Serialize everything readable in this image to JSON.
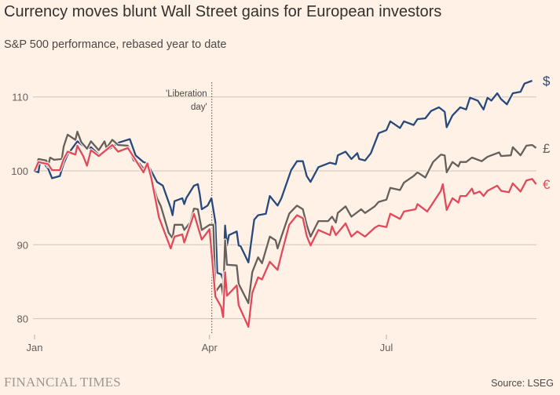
{
  "chart_data": {
    "type": "line",
    "title": "Currency moves blunt Wall Street gains for European investors",
    "subtitle": "S&P 500 performance, rebased year to date",
    "xlabel": "",
    "ylabel": "",
    "x_unit": "day of year 2025 (0 = 1 Jan)",
    "xlim": [
      0,
      258
    ],
    "ylim": [
      78,
      113
    ],
    "yticks": [
      80,
      90,
      100,
      110
    ],
    "xticks": [
      {
        "day": 0,
        "label": "Jan"
      },
      {
        "day": 90,
        "label": "Apr"
      },
      {
        "day": 181,
        "label": "Jul"
      }
    ],
    "grid": true,
    "annotation": {
      "day": 91,
      "lines": [
        "'Liberation",
        "day'"
      ]
    },
    "series": [
      {
        "name": "$",
        "color": "#27497c",
        "points": [
          [
            0,
            100
          ],
          [
            2,
            99.8
          ],
          [
            3,
            101.6
          ],
          [
            7,
            100.3
          ],
          [
            9,
            99.0
          ],
          [
            13,
            99.3
          ],
          [
            15,
            101
          ],
          [
            17,
            102.2
          ],
          [
            22,
            104
          ],
          [
            27,
            103
          ],
          [
            29,
            103.2
          ],
          [
            33,
            102.2
          ],
          [
            40,
            103.2
          ],
          [
            43,
            103.8
          ],
          [
            49,
            104.3
          ],
          [
            52,
            102.1
          ],
          [
            56,
            101.2
          ],
          [
            58,
            101
          ],
          [
            63,
            98.5
          ],
          [
            66,
            98.0
          ],
          [
            70,
            95
          ],
          [
            71,
            94
          ],
          [
            72,
            95.9
          ],
          [
            76,
            96.3
          ],
          [
            77,
            95.5
          ],
          [
            78,
            96.3
          ],
          [
            82,
            98.0
          ],
          [
            84,
            98.2
          ],
          [
            85,
            96.8
          ],
          [
            86,
            94.8
          ],
          [
            89,
            95.3
          ],
          [
            91,
            96.3
          ],
          [
            93,
            93.1
          ],
          [
            94,
            86.2
          ],
          [
            96,
            86
          ],
          [
            97,
            85.2
          ],
          [
            98,
            92.6
          ],
          [
            99,
            89.9
          ],
          [
            100,
            91.3
          ],
          [
            104,
            91.8
          ],
          [
            105,
            89.9
          ],
          [
            106,
            89.8
          ],
          [
            110,
            87.6
          ],
          [
            113,
            93.4
          ],
          [
            115,
            94
          ],
          [
            119,
            94.2
          ],
          [
            121,
            96.6
          ],
          [
            125,
            95.3
          ],
          [
            127,
            96.3
          ],
          [
            132,
            100.1
          ],
          [
            135,
            101.3
          ],
          [
            138,
            101.3
          ],
          [
            140,
            99.3
          ],
          [
            142,
            98.5
          ],
          [
            146,
            100.5
          ],
          [
            152,
            101.1
          ],
          [
            155,
            100.9
          ],
          [
            156,
            102.1
          ],
          [
            160,
            102.6
          ],
          [
            163,
            101.6
          ],
          [
            166,
            102.4
          ],
          [
            167,
            101.6
          ],
          [
            170,
            101.4
          ],
          [
            173,
            102.4
          ],
          [
            177,
            105.1
          ],
          [
            181,
            105.5
          ],
          [
            183,
            106.7
          ],
          [
            188,
            105.8
          ],
          [
            190,
            106.7
          ],
          [
            195,
            106.2
          ],
          [
            197,
            107
          ],
          [
            201,
            107.1
          ],
          [
            204,
            108.1
          ],
          [
            208,
            108.6
          ],
          [
            211,
            108
          ],
          [
            212,
            105.9
          ],
          [
            215,
            107.5
          ],
          [
            219,
            108.6
          ],
          [
            222,
            108.3
          ],
          [
            224,
            109.9
          ],
          [
            228,
            109.5
          ],
          [
            231,
            108.3
          ],
          [
            233,
            109.9
          ],
          [
            235,
            109.5
          ],
          [
            238,
            110.5
          ],
          [
            240,
            109.7
          ],
          [
            243,
            109
          ],
          [
            246,
            110.5
          ],
          [
            250,
            110.7
          ],
          [
            252,
            111.8
          ],
          [
            256,
            112.2
          ]
        ]
      },
      {
        "name": "£",
        "color": "#66605c",
        "points": [
          [
            0,
            100
          ],
          [
            2,
            101.6
          ],
          [
            6,
            101.4
          ],
          [
            7,
            100.6
          ],
          [
            8,
            101.8
          ],
          [
            10,
            101.5
          ],
          [
            14,
            101.6
          ],
          [
            15,
            103.3
          ],
          [
            17,
            104.9
          ],
          [
            21,
            104.2
          ],
          [
            22,
            105.3
          ],
          [
            24,
            103.9
          ],
          [
            27,
            103
          ],
          [
            29,
            104
          ],
          [
            33,
            102.8
          ],
          [
            36,
            104
          ],
          [
            37,
            103.1
          ],
          [
            40,
            104.2
          ],
          [
            43,
            103.5
          ],
          [
            48,
            103.4
          ],
          [
            51,
            101.4
          ],
          [
            54,
            101
          ],
          [
            56,
            100.3
          ],
          [
            58,
            101
          ],
          [
            60,
            99.1
          ],
          [
            63,
            96.3
          ],
          [
            65,
            95.2
          ],
          [
            69,
            91.6
          ],
          [
            71,
            90.9
          ],
          [
            72,
            92.7
          ],
          [
            76,
            92.7
          ],
          [
            77,
            92.0
          ],
          [
            80,
            93
          ],
          [
            82,
            94.9
          ],
          [
            84,
            94.8
          ],
          [
            86,
            92
          ],
          [
            90,
            92.7
          ],
          [
            92,
            92.7
          ],
          [
            93,
            83.6
          ],
          [
            96,
            84.7
          ],
          [
            97,
            83.1
          ],
          [
            98,
            90.6
          ],
          [
            99,
            87.3
          ],
          [
            104,
            87.2
          ],
          [
            105,
            84.7
          ],
          [
            110,
            82.1
          ],
          [
            112,
            86.3
          ],
          [
            115,
            88.3
          ],
          [
            117,
            87.5
          ],
          [
            121,
            91.1
          ],
          [
            124,
            90.6
          ],
          [
            125,
            89.5
          ],
          [
            127,
            91.1
          ],
          [
            131,
            94.2
          ],
          [
            132,
            94.5
          ],
          [
            135,
            95.3
          ],
          [
            138,
            94.8
          ],
          [
            140,
            92.7
          ],
          [
            142,
            91.1
          ],
          [
            146,
            93.2
          ],
          [
            151,
            93.2
          ],
          [
            153,
            93.8
          ],
          [
            155,
            93
          ],
          [
            156,
            94.3
          ],
          [
            160,
            95.2
          ],
          [
            163,
            93.8
          ],
          [
            168,
            94.8
          ],
          [
            170,
            94.3
          ],
          [
            175,
            95.2
          ],
          [
            177,
            95.8
          ],
          [
            181,
            96.1
          ],
          [
            183,
            97.7
          ],
          [
            188,
            97.4
          ],
          [
            190,
            98.4
          ],
          [
            195,
            99.3
          ],
          [
            197,
            99.8
          ],
          [
            201,
            99.1
          ],
          [
            205,
            101.2
          ],
          [
            209,
            102.2
          ],
          [
            211,
            102.1
          ],
          [
            212,
            99.8
          ],
          [
            215,
            101.2
          ],
          [
            218,
            100.6
          ],
          [
            219,
            101.2
          ],
          [
            222,
            101.2
          ],
          [
            225,
            101.8
          ],
          [
            230,
            101.3
          ],
          [
            233,
            101.9
          ],
          [
            239,
            102.5
          ],
          [
            240,
            102
          ],
          [
            245,
            102.1
          ],
          [
            246,
            103.2
          ],
          [
            250,
            102.1
          ],
          [
            253,
            103.4
          ],
          [
            256,
            103.5
          ],
          [
            258,
            103.1
          ]
        ]
      },
      {
        "name": "€",
        "color": "#e04a5b",
        "points": [
          [
            0,
            100
          ],
          [
            2,
            101.2
          ],
          [
            7,
            100.9
          ],
          [
            9,
            100.1
          ],
          [
            13,
            100.1
          ],
          [
            15,
            101.6
          ],
          [
            17,
            102.6
          ],
          [
            21,
            102.2
          ],
          [
            22,
            103.4
          ],
          [
            25,
            102
          ],
          [
            27,
            100.7
          ],
          [
            29,
            102.8
          ],
          [
            33,
            102
          ],
          [
            40,
            103.5
          ],
          [
            43,
            102.6
          ],
          [
            48,
            103.1
          ],
          [
            56,
            99.8
          ],
          [
            58,
            101
          ],
          [
            60,
            99.1
          ],
          [
            64,
            93.7
          ],
          [
            70,
            89.5
          ],
          [
            72,
            91.1
          ],
          [
            76,
            91.4
          ],
          [
            77,
            90.3
          ],
          [
            82,
            94.2
          ],
          [
            86,
            90.7
          ],
          [
            90,
            92.1
          ],
          [
            93,
            83
          ],
          [
            96,
            81.6
          ],
          [
            97,
            80.2
          ],
          [
            98,
            86.3
          ],
          [
            99,
            83.1
          ],
          [
            104,
            84.5
          ],
          [
            105,
            81.8
          ],
          [
            110,
            78.9
          ],
          [
            112,
            83.5
          ],
          [
            115,
            85.6
          ],
          [
            117,
            85.3
          ],
          [
            121,
            87.7
          ],
          [
            125,
            86.6
          ],
          [
            127,
            88.7
          ],
          [
            131,
            92.7
          ],
          [
            135,
            94
          ],
          [
            138,
            93.6
          ],
          [
            140,
            91.2
          ],
          [
            142,
            89.9
          ],
          [
            146,
            92
          ],
          [
            152,
            91.3
          ],
          [
            153,
            92.5
          ],
          [
            155,
            91.3
          ],
          [
            160,
            92.9
          ],
          [
            163,
            91.1
          ],
          [
            166,
            91.8
          ],
          [
            170,
            91.1
          ],
          [
            175,
            92.3
          ],
          [
            177,
            92.6
          ],
          [
            181,
            92.4
          ],
          [
            183,
            94.2
          ],
          [
            188,
            93.5
          ],
          [
            190,
            94.5
          ],
          [
            196,
            94.8
          ],
          [
            197,
            95.5
          ],
          [
            202,
            94.5
          ],
          [
            209,
            97.3
          ],
          [
            210,
            98.2
          ],
          [
            212,
            94.7
          ],
          [
            215,
            96.3
          ],
          [
            218,
            95.7
          ],
          [
            219,
            96.6
          ],
          [
            222,
            96.6
          ],
          [
            225,
            97.6
          ],
          [
            226,
            96.9
          ],
          [
            229,
            97.2
          ],
          [
            231,
            96.6
          ],
          [
            233,
            97.3
          ],
          [
            238,
            98
          ],
          [
            240,
            97.3
          ],
          [
            244,
            97.1
          ],
          [
            246,
            98.3
          ],
          [
            250,
            97.2
          ],
          [
            253,
            98.7
          ],
          [
            256,
            98.9
          ],
          [
            258,
            98.2
          ]
        ]
      }
    ]
  },
  "footer": {
    "brand": "FINANCIAL TIMES",
    "source": "Source: LSEG"
  }
}
